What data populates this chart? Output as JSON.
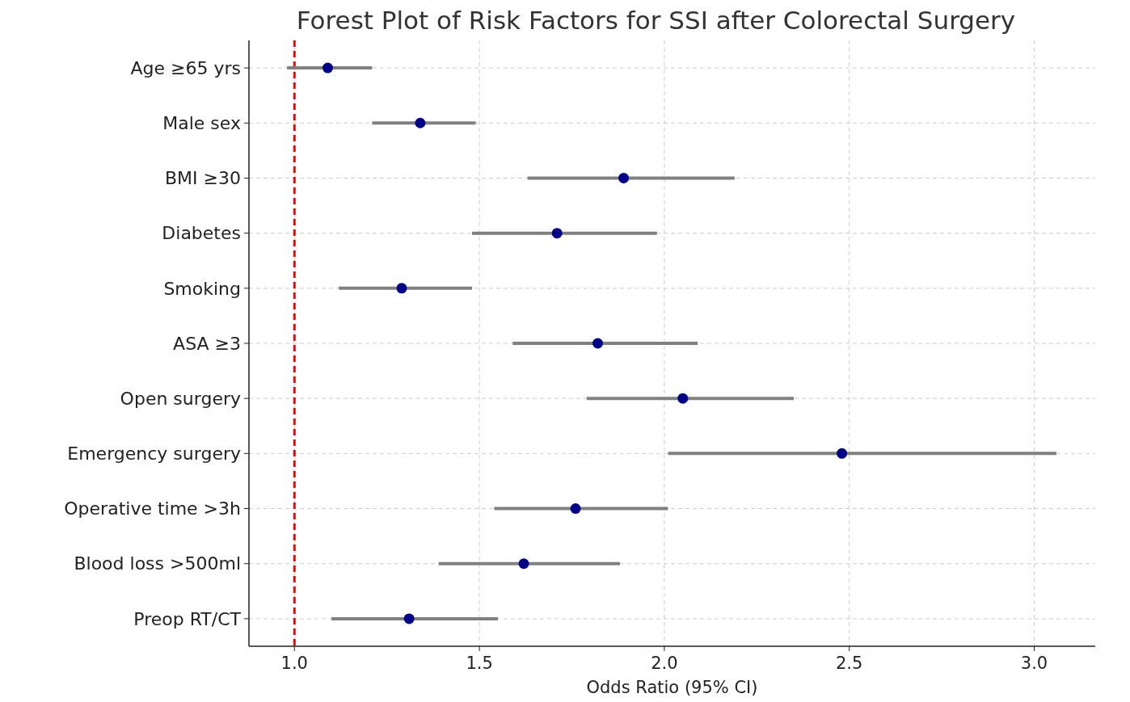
{
  "chart_data": {
    "type": "scatter",
    "orientation": "horizontal",
    "title": "Forest Plot of Risk Factors for SSI after Colorectal Surgery",
    "xlabel": "Odds Ratio (95% CI)",
    "categories": [
      "Age ≥65 yrs",
      "Male sex",
      "BMI ≥30",
      "Diabetes",
      "Smoking",
      "ASA ≥3",
      "Open surgery",
      "Emergency surgery",
      "Operative time >3h",
      "Blood loss >500ml",
      "Preop RT/CT"
    ],
    "series": [
      {
        "color": "#00008b",
        "values": [
          1.09,
          1.34,
          1.89,
          1.71,
          1.29,
          1.82,
          2.05,
          2.48,
          1.76,
          1.62,
          1.31
        ],
        "errors": [
          [
            0.98,
            1.21
          ],
          [
            1.21,
            1.49
          ],
          [
            1.63,
            2.19
          ],
          [
            1.48,
            1.98
          ],
          [
            1.12,
            1.48
          ],
          [
            1.59,
            2.09
          ],
          [
            1.79,
            2.35
          ],
          [
            2.01,
            3.06
          ],
          [
            1.54,
            2.01
          ],
          [
            1.39,
            1.88
          ],
          [
            1.1,
            1.55
          ]
        ]
      }
    ],
    "xlim": [
      0.877,
      3.165
    ],
    "xticks": [
      {
        "value": 1,
        "label": "1.0"
      },
      {
        "value": 1.5,
        "label": "1.5"
      },
      {
        "value": 2,
        "label": "2.0"
      },
      {
        "value": 2.5,
        "label": "2.5"
      },
      {
        "value": 3,
        "label": "3.0"
      }
    ],
    "ref_lines": [
      {
        "axis": "x",
        "value": 1,
        "color": "#ff0000",
        "line_style": "dashed"
      }
    ],
    "grid": true,
    "marker": "circle"
  }
}
